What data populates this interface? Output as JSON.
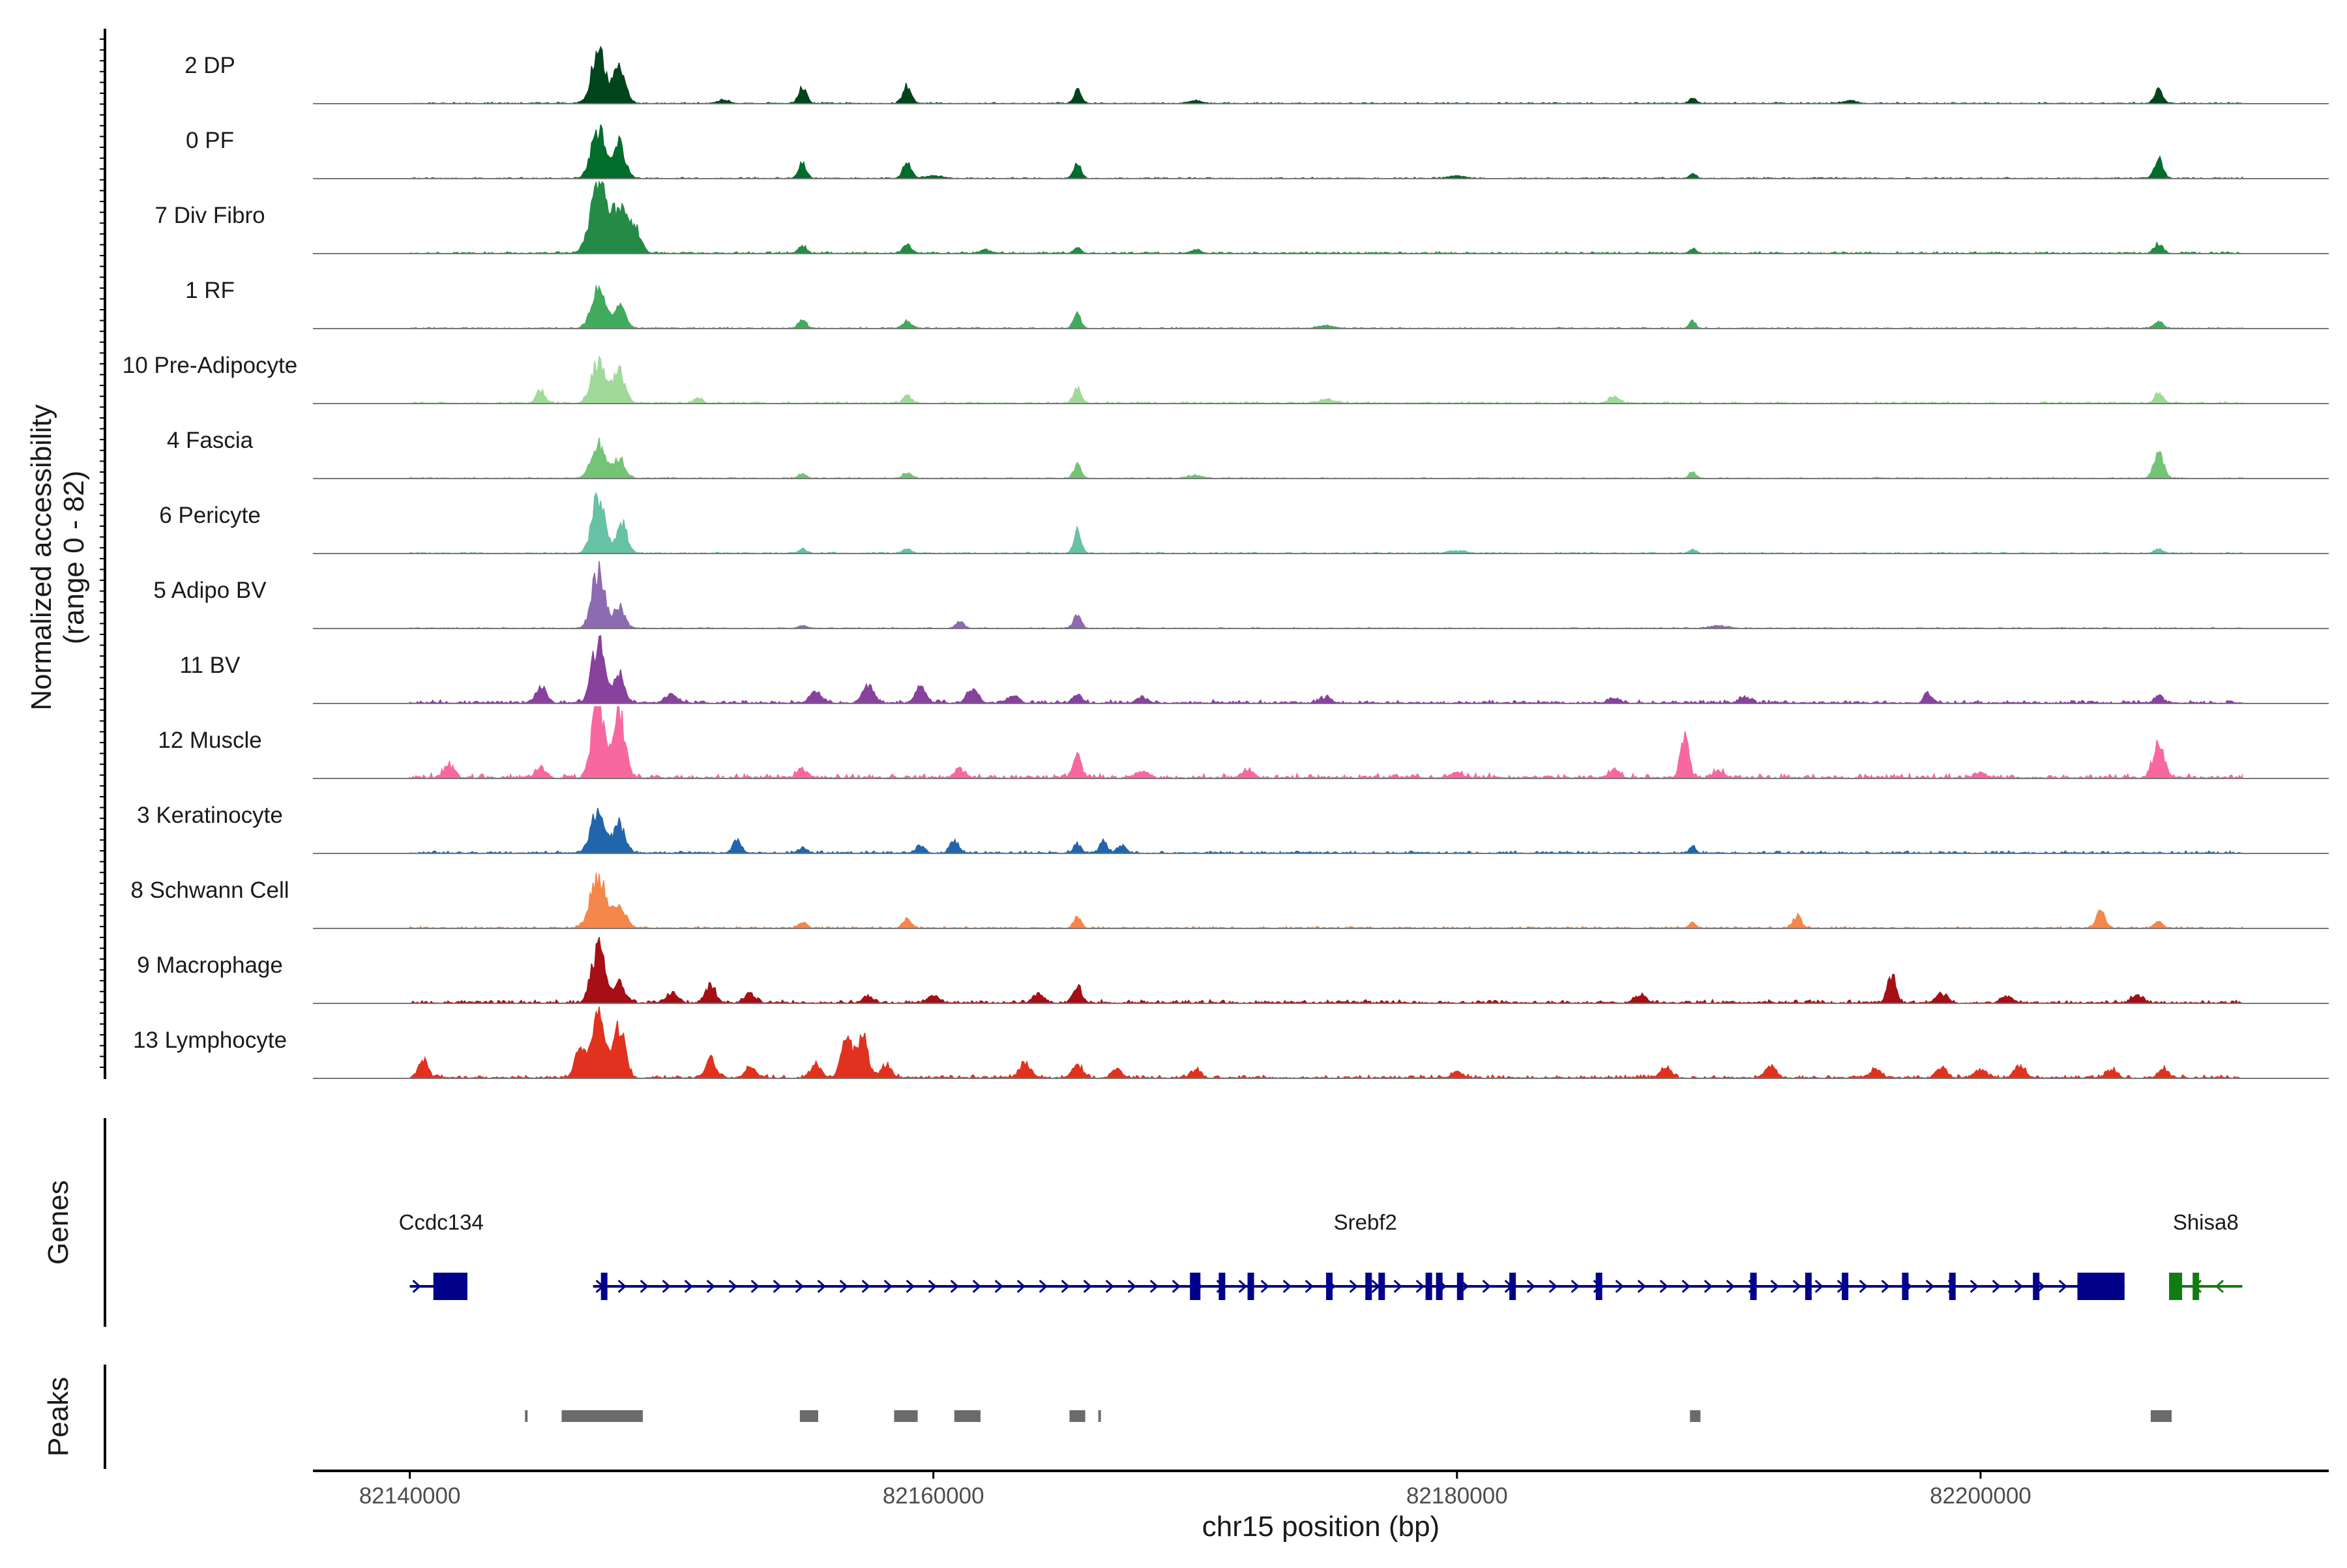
{
  "chart_data": {
    "type": "area",
    "title": "",
    "ylabel_lines": [
      "Normalized accessibility",
      "(range 0 - 82)"
    ],
    "ylim": [
      0,
      82
    ],
    "xlabel": "chr15 position (bp)",
    "xlim": [
      82136300,
      82213300
    ],
    "xticks": [
      82140000,
      82160000,
      82180000,
      82200000
    ],
    "xtick_labels": [
      "82140000",
      "82160000",
      "82180000",
      "82200000"
    ],
    "region": [
      82140000,
      82210000
    ],
    "genes_label": "Genes",
    "peaks_label": "Peaks",
    "tracks": [
      {
        "name": "2 DP",
        "color": "#00441b",
        "background": 0.8,
        "peaks": [
          [
            82147200,
            58,
            260
          ],
          [
            82148000,
            40,
            220
          ],
          [
            82155000,
            18,
            150
          ],
          [
            82159000,
            20,
            160
          ],
          [
            82165500,
            15,
            140
          ],
          [
            82189000,
            6,
            120
          ],
          [
            82206800,
            14,
            160
          ],
          [
            82152000,
            4,
            200
          ],
          [
            82170000,
            3,
            250
          ],
          [
            82195000,
            3,
            250
          ]
        ]
      },
      {
        "name": "0 PF",
        "color": "#006d2c",
        "background": 0.8,
        "peaks": [
          [
            82147200,
            55,
            260
          ],
          [
            82148000,
            38,
            220
          ],
          [
            82155000,
            17,
            150
          ],
          [
            82159000,
            17,
            160
          ],
          [
            82165500,
            18,
            140
          ],
          [
            82189000,
            6,
            120
          ],
          [
            82206800,
            22,
            160
          ],
          [
            82180000,
            3,
            300
          ],
          [
            82160000,
            3,
            300
          ]
        ]
      },
      {
        "name": "7 Div Fibro",
        "color": "#238b45",
        "background": 1.2,
        "peaks": [
          [
            82147200,
            80,
            300
          ],
          [
            82148000,
            50,
            260
          ],
          [
            82148600,
            30,
            220
          ],
          [
            82155000,
            8,
            140
          ],
          [
            82159000,
            9,
            160
          ],
          [
            82165500,
            6,
            140
          ],
          [
            82189000,
            5,
            120
          ],
          [
            82206800,
            10,
            160
          ],
          [
            82162000,
            4,
            200
          ],
          [
            82170000,
            4,
            200
          ]
        ]
      },
      {
        "name": "1 RF",
        "color": "#41ab5d",
        "background": 0.8,
        "peaks": [
          [
            82147200,
            45,
            260
          ],
          [
            82148000,
            26,
            220
          ],
          [
            82155000,
            9,
            150
          ],
          [
            82159000,
            9,
            160
          ],
          [
            82165500,
            15,
            140
          ],
          [
            82189000,
            8,
            120
          ],
          [
            82206800,
            9,
            160
          ],
          [
            82175000,
            3,
            300
          ]
        ]
      },
      {
        "name": "10 Pre-Adipocyte",
        "color": "#a1d99b",
        "background": 1.2,
        "peaks": [
          [
            82147200,
            48,
            260
          ],
          [
            82148000,
            35,
            220
          ],
          [
            82145000,
            14,
            160
          ],
          [
            82151000,
            6,
            160
          ],
          [
            82159000,
            8,
            160
          ],
          [
            82165500,
            17,
            140
          ],
          [
            82186000,
            8,
            200
          ],
          [
            82206800,
            12,
            160
          ],
          [
            82175000,
            4,
            300
          ]
        ]
      },
      {
        "name": "4 Fascia",
        "color": "#74c476",
        "background": 0.8,
        "peaks": [
          [
            82147200,
            38,
            260
          ],
          [
            82148000,
            22,
            220
          ],
          [
            82155000,
            5,
            150
          ],
          [
            82159000,
            7,
            160
          ],
          [
            82165500,
            15,
            140
          ],
          [
            82189000,
            8,
            120
          ],
          [
            82206800,
            30,
            180
          ],
          [
            82170000,
            3,
            300
          ]
        ]
      },
      {
        "name": "6 Pericyte",
        "color": "#66c2a4",
        "background": 0.8,
        "peaks": [
          [
            82147200,
            62,
            240
          ],
          [
            82148100,
            35,
            200
          ],
          [
            82155000,
            5,
            150
          ],
          [
            82159000,
            5,
            160
          ],
          [
            82165500,
            25,
            140
          ],
          [
            82189000,
            4,
            120
          ],
          [
            82206800,
            5,
            160
          ],
          [
            82180000,
            3,
            300
          ]
        ]
      },
      {
        "name": "5 Adipo BV",
        "color": "#8c6bb1",
        "background": 0.6,
        "peaks": [
          [
            82147200,
            65,
            240
          ],
          [
            82148000,
            25,
            200
          ],
          [
            82161000,
            8,
            150
          ],
          [
            82165500,
            15,
            140
          ],
          [
            82155000,
            3,
            150
          ],
          [
            82190000,
            3,
            300
          ]
        ]
      },
      {
        "name": "11 BV",
        "color": "#88419d",
        "background": 2.2,
        "peaks": [
          [
            82147200,
            70,
            240
          ],
          [
            82148000,
            32,
            200
          ],
          [
            82145000,
            18,
            200
          ],
          [
            82150000,
            10,
            200
          ],
          [
            82155500,
            14,
            200
          ],
          [
            82157500,
            20,
            200
          ],
          [
            82159500,
            16,
            200
          ],
          [
            82161500,
            18,
            200
          ],
          [
            82163000,
            8,
            200
          ],
          [
            82165500,
            10,
            150
          ],
          [
            82168000,
            6,
            200
          ],
          [
            82175000,
            6,
            200
          ],
          [
            82186000,
            5,
            200
          ],
          [
            82191000,
            7,
            200
          ],
          [
            82198000,
            10,
            150
          ],
          [
            82206800,
            10,
            150
          ]
        ]
      },
      {
        "name": "12 Muscle",
        "color": "#f768a1",
        "background": 3.0,
        "peaks": [
          [
            82147200,
            88,
            230
          ],
          [
            82148000,
            72,
            220
          ],
          [
            82145000,
            10,
            200
          ],
          [
            82141500,
            14,
            200
          ],
          [
            82155000,
            9,
            200
          ],
          [
            82161000,
            10,
            200
          ],
          [
            82165500,
            24,
            160
          ],
          [
            82168000,
            8,
            200
          ],
          [
            82172000,
            8,
            200
          ],
          [
            82180000,
            7,
            200
          ],
          [
            82186000,
            9,
            200
          ],
          [
            82188700,
            45,
            160
          ],
          [
            82190000,
            8,
            200
          ],
          [
            82200000,
            6,
            200
          ],
          [
            82206800,
            38,
            200
          ]
        ]
      },
      {
        "name": "3 Keratinocyte",
        "color": "#2166ac",
        "background": 1.5,
        "peaks": [
          [
            82147200,
            50,
            260
          ],
          [
            82148000,
            32,
            220
          ],
          [
            82152500,
            15,
            160
          ],
          [
            82155000,
            6,
            150
          ],
          [
            82159500,
            8,
            160
          ],
          [
            82160800,
            15,
            160
          ],
          [
            82165500,
            10,
            150
          ],
          [
            82166500,
            12,
            150
          ],
          [
            82167200,
            9,
            150
          ],
          [
            82189000,
            7,
            120
          ]
        ]
      },
      {
        "name": "8 Schwann Cell",
        "color": "#f4874b",
        "background": 1.2,
        "peaks": [
          [
            82147200,
            55,
            300
          ],
          [
            82148000,
            22,
            260
          ],
          [
            82155000,
            6,
            150
          ],
          [
            82159000,
            10,
            160
          ],
          [
            82165500,
            12,
            140
          ],
          [
            82189000,
            6,
            120
          ],
          [
            82193000,
            14,
            160
          ],
          [
            82204600,
            20,
            160
          ],
          [
            82206800,
            7,
            160
          ]
        ]
      },
      {
        "name": "9 Macrophage",
        "color": "#a50f15",
        "background": 2.2,
        "peaks": [
          [
            82147200,
            62,
            250
          ],
          [
            82148000,
            22,
            220
          ],
          [
            82150000,
            12,
            200
          ],
          [
            82151500,
            18,
            200
          ],
          [
            82153000,
            10,
            200
          ],
          [
            82157500,
            8,
            200
          ],
          [
            82160000,
            9,
            200
          ],
          [
            82164000,
            10,
            200
          ],
          [
            82165500,
            18,
            160
          ],
          [
            82187000,
            10,
            200
          ],
          [
            82196600,
            30,
            160
          ],
          [
            82198500,
            11,
            200
          ],
          [
            82201000,
            8,
            200
          ],
          [
            82206000,
            9,
            200
          ]
        ]
      },
      {
        "name": "13 Lymphocyte",
        "color": "#e0321f",
        "background": 2.2,
        "peaks": [
          [
            82140500,
            22,
            160
          ],
          [
            82146500,
            30,
            200
          ],
          [
            82147200,
            80,
            240
          ],
          [
            82148000,
            55,
            220
          ],
          [
            82151500,
            20,
            200
          ],
          [
            82153000,
            12,
            200
          ],
          [
            82155500,
            14,
            200
          ],
          [
            82156700,
            45,
            200
          ],
          [
            82157300,
            48,
            200
          ],
          [
            82158200,
            15,
            200
          ],
          [
            82163500,
            18,
            200
          ],
          [
            82165500,
            14,
            200
          ],
          [
            82167000,
            9,
            200
          ],
          [
            82170000,
            8,
            200
          ],
          [
            82180000,
            7,
            200
          ],
          [
            82188000,
            12,
            200
          ],
          [
            82192000,
            12,
            200
          ],
          [
            82196000,
            9,
            200
          ],
          [
            82200000,
            10,
            200
          ],
          [
            82201500,
            14,
            200
          ],
          [
            82198500,
            10,
            200
          ],
          [
            82205000,
            9,
            200
          ],
          [
            82207000,
            9,
            200
          ]
        ]
      }
    ],
    "genes": [
      {
        "name": "Ccdc134",
        "strand": "+",
        "start": 82140000,
        "end": 82142200,
        "exons": [
          [
            82140900,
            82142200
          ]
        ],
        "utr": [],
        "label_pos": 82141200,
        "color": "#00008b"
      },
      {
        "name": "Srebf2",
        "strand": "+",
        "start": 82147000,
        "end": 82205500,
        "exons": [
          [
            82147300,
            82147500
          ],
          [
            82169800,
            82170200
          ],
          [
            82170900,
            82171100
          ],
          [
            82172000,
            82172200
          ],
          [
            82175000,
            82175200
          ],
          [
            82176500,
            82176700
          ],
          [
            82177000,
            82177200
          ],
          [
            82178800,
            82179000
          ],
          [
            82179200,
            82179400
          ],
          [
            82180000,
            82180200
          ],
          [
            82182000,
            82182200
          ],
          [
            82185300,
            82185500
          ],
          [
            82191200,
            82191400
          ],
          [
            82193300,
            82193500
          ],
          [
            82194700,
            82194900
          ],
          [
            82197000,
            82197200
          ],
          [
            82198800,
            82199000
          ],
          [
            82202000,
            82202200
          ],
          [
            82203700,
            82205500
          ]
        ],
        "utr": [],
        "label_pos": 82176500,
        "color": "#00008b"
      },
      {
        "name": "Shisa8",
        "strand": "-",
        "start": 82207200,
        "end": 82210000,
        "exons": [
          [
            82207200,
            82207700
          ],
          [
            82208100,
            82208300
          ]
        ],
        "utr": [],
        "label_pos": 82208600,
        "color": "#137b13"
      }
    ],
    "peak_regions": [
      [
        82144400,
        82144450
      ],
      [
        82145800,
        82148900
      ],
      [
        82154900,
        82155600
      ],
      [
        82158500,
        82159400
      ],
      [
        82160800,
        82161800
      ],
      [
        82165200,
        82165800
      ],
      [
        82166300,
        82166350
      ],
      [
        82188900,
        82189300
      ],
      [
        82206500,
        82207300
      ]
    ],
    "peak_color": "#6b6b6b"
  }
}
